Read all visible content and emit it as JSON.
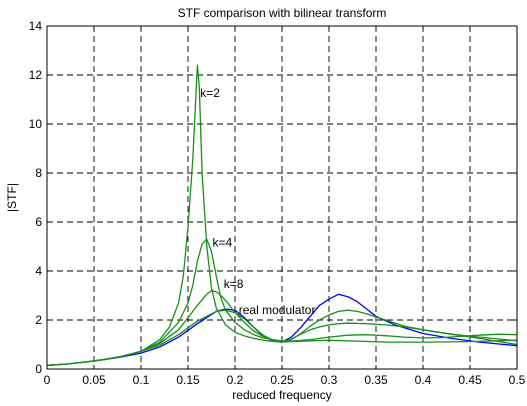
{
  "chart_data": {
    "type": "line",
    "title": "STF comparison with bilinear transform",
    "xlabel": "reduced frequency",
    "ylabel": "|STF|",
    "xlim": [
      0,
      0.5
    ],
    "ylim": [
      0,
      14
    ],
    "xticks": [
      0,
      0.05,
      0.1,
      0.15,
      0.2,
      0.25,
      0.3,
      0.35,
      0.4,
      0.45,
      0.5
    ],
    "xtick_labels": [
      "0",
      "0.05",
      "0.1",
      "0.15",
      "0.2",
      "0.25",
      "0.3",
      "0.35",
      "0.4",
      "0.45",
      "0.5"
    ],
    "yticks": [
      0,
      2,
      4,
      6,
      8,
      10,
      12,
      14
    ],
    "ytick_labels": [
      "0",
      "2",
      "4",
      "6",
      "8",
      "10",
      "12",
      "14"
    ],
    "grid": true,
    "grid_style": "dashed",
    "annotations": [
      {
        "text": "k=2",
        "x": 0.163,
        "y": 11.1
      },
      {
        "text": "k=4",
        "x": 0.176,
        "y": 5.0
      },
      {
        "text": "k=8",
        "x": 0.188,
        "y": 3.3
      },
      {
        "text": "real modulator",
        "x": 0.204,
        "y": 2.25
      }
    ],
    "series": [
      {
        "color": "#0000ff",
        "x": [
          0,
          0.02,
          0.04,
          0.06,
          0.08,
          0.1,
          0.12,
          0.14,
          0.16,
          0.17,
          0.18,
          0.19,
          0.2,
          0.21,
          0.22,
          0.23,
          0.24,
          0.25,
          0.26,
          0.27,
          0.28,
          0.29,
          0.3,
          0.31,
          0.32,
          0.33,
          0.34,
          0.35,
          0.37,
          0.4,
          0.43,
          0.46,
          0.5
        ],
        "y": [
          0.15,
          0.2,
          0.28,
          0.38,
          0.5,
          0.65,
          0.9,
          1.3,
          1.85,
          2.1,
          2.35,
          2.45,
          2.4,
          2.1,
          1.7,
          1.35,
          1.15,
          1.1,
          1.3,
          1.7,
          2.15,
          2.6,
          2.85,
          3.05,
          2.95,
          2.75,
          2.45,
          2.15,
          1.8,
          1.45,
          1.25,
          1.1,
          0.95
        ]
      },
      {
        "color": "#1a8f1a",
        "x": [
          0,
          0.02,
          0.04,
          0.06,
          0.08,
          0.1,
          0.12,
          0.13,
          0.14,
          0.145,
          0.15,
          0.155,
          0.158,
          0.16,
          0.162,
          0.165,
          0.17,
          0.175,
          0.18,
          0.19,
          0.2,
          0.21,
          0.22,
          0.23,
          0.24,
          0.25,
          0.26,
          0.28,
          0.3,
          0.33,
          0.36,
          0.4,
          0.45,
          0.48,
          0.5
        ],
        "y": [
          0.15,
          0.2,
          0.28,
          0.38,
          0.52,
          0.72,
          1.2,
          1.7,
          2.7,
          3.8,
          5.8,
          8.5,
          10.8,
          12.4,
          11.5,
          8.0,
          5.0,
          3.3,
          2.5,
          1.8,
          1.5,
          1.35,
          1.25,
          1.18,
          1.13,
          1.1,
          1.12,
          1.15,
          1.17,
          1.14,
          1.1,
          1.1,
          1.12,
          1.15,
          1.18
        ]
      },
      {
        "color": "#1a8f1a",
        "x": [
          0,
          0.02,
          0.04,
          0.06,
          0.08,
          0.1,
          0.12,
          0.14,
          0.15,
          0.155,
          0.16,
          0.165,
          0.17,
          0.175,
          0.18,
          0.185,
          0.19,
          0.2,
          0.21,
          0.22,
          0.23,
          0.24,
          0.25,
          0.26,
          0.28,
          0.3,
          0.32,
          0.34,
          0.36,
          0.38,
          0.4,
          0.42,
          0.44,
          0.46,
          0.48,
          0.5
        ],
        "y": [
          0.15,
          0.2,
          0.28,
          0.38,
          0.52,
          0.72,
          1.1,
          1.9,
          2.7,
          3.4,
          4.4,
          5.1,
          5.3,
          4.8,
          3.8,
          2.9,
          2.4,
          1.9,
          1.6,
          1.4,
          1.27,
          1.2,
          1.15,
          1.14,
          1.2,
          1.3,
          1.38,
          1.4,
          1.36,
          1.3,
          1.27,
          1.28,
          1.33,
          1.38,
          1.42,
          1.4
        ]
      },
      {
        "color": "#1a8f1a",
        "x": [
          0,
          0.02,
          0.04,
          0.06,
          0.08,
          0.1,
          0.12,
          0.14,
          0.15,
          0.16,
          0.17,
          0.175,
          0.18,
          0.185,
          0.19,
          0.2,
          0.21,
          0.22,
          0.23,
          0.24,
          0.25,
          0.26,
          0.27,
          0.28,
          0.29,
          0.3,
          0.31,
          0.32,
          0.33,
          0.34,
          0.36,
          0.38,
          0.4,
          0.43,
          0.46,
          0.5
        ],
        "y": [
          0.15,
          0.2,
          0.28,
          0.38,
          0.52,
          0.72,
          1.05,
          1.6,
          2.1,
          2.6,
          3.05,
          3.2,
          3.15,
          3.0,
          2.8,
          2.3,
          1.9,
          1.55,
          1.33,
          1.18,
          1.12,
          1.2,
          1.45,
          1.75,
          2.0,
          2.2,
          2.35,
          2.4,
          2.35,
          2.25,
          2.0,
          1.75,
          1.6,
          1.42,
          1.3,
          1.15
        ]
      },
      {
        "color": "#1a8f1a",
        "x": [
          0,
          0.02,
          0.04,
          0.06,
          0.08,
          0.1,
          0.12,
          0.14,
          0.16,
          0.18,
          0.19,
          0.2,
          0.21,
          0.22,
          0.23,
          0.24,
          0.25,
          0.26,
          0.27,
          0.28,
          0.29,
          0.3,
          0.31,
          0.32,
          0.33,
          0.34,
          0.36,
          0.38,
          0.4,
          0.43,
          0.46,
          0.5
        ],
        "y": [
          0.15,
          0.2,
          0.28,
          0.38,
          0.52,
          0.72,
          0.98,
          1.4,
          1.95,
          2.35,
          2.4,
          2.3,
          2.05,
          1.7,
          1.38,
          1.18,
          1.1,
          1.22,
          1.42,
          1.6,
          1.72,
          1.8,
          1.85,
          1.87,
          1.86,
          1.85,
          1.8,
          1.72,
          1.6,
          1.42,
          1.25,
          1.0
        ]
      }
    ]
  }
}
